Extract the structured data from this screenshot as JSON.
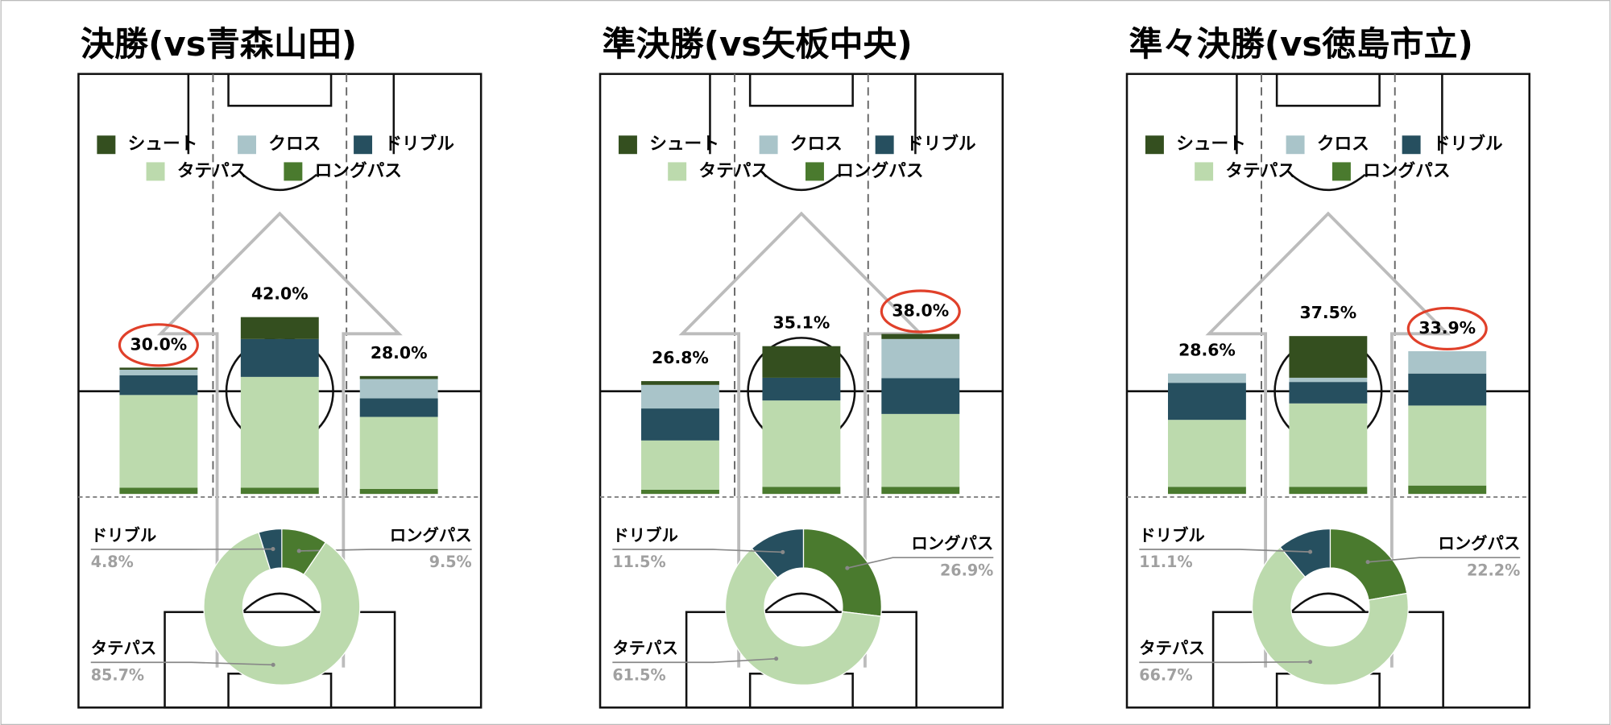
{
  "chart_data": [
    {
      "type": "bar",
      "stacked": true,
      "title": "決勝(vs青森山田)",
      "categories": [
        null,
        null,
        null
      ],
      "ylim": [
        0,
        100
      ],
      "series": [
        {
          "name": "シュート",
          "color": "#344f1f",
          "values": [
            0.5,
            5.2,
            0.7
          ]
        },
        {
          "name": "クロス",
          "color": "#a9c4c9",
          "values": [
            1.3,
            0,
            4.6
          ]
        },
        {
          "name": "ドリブル",
          "color": "#264f5f",
          "values": [
            4.7,
            9.0,
            4.4
          ]
        },
        {
          "name": "タテパス",
          "color": "#bcdaad",
          "values": [
            22,
            26.3,
            17.1
          ]
        },
        {
          "name": "ロングパス",
          "color": "#4a7a2e",
          "values": [
            1.5,
            1.5,
            1.2
          ]
        }
      ],
      "totals": [
        30.0,
        42.0,
        28.0
      ],
      "total_labels": [
        "30.0%",
        "42.0%",
        "28.0%"
      ],
      "highlight": [
        0
      ]
    },
    {
      "type": "bar",
      "stacked": true,
      "title": "準決勝(vs矢板中央)",
      "categories": [
        null,
        null,
        null
      ],
      "ylim": [
        0,
        100
      ],
      "series": [
        {
          "name": "シュート",
          "color": "#344f1f",
          "values": [
            0.9,
            7.5,
            1.2
          ]
        },
        {
          "name": "クロス",
          "color": "#a9c4c9",
          "values": [
            5.6,
            0,
            9.3
          ]
        },
        {
          "name": "ドリブル",
          "color": "#264f5f",
          "values": [
            7.6,
            5.4,
            8.5
          ]
        },
        {
          "name": "タテパス",
          "color": "#bcdaad",
          "values": [
            11.7,
            20.5,
            17.3
          ]
        },
        {
          "name": "ロングパス",
          "color": "#4a7a2e",
          "values": [
            1.0,
            1.7,
            1.7
          ]
        }
      ],
      "totals": [
        26.8,
        35.1,
        38.0
      ],
      "total_labels": [
        "26.8%",
        "35.1%",
        "38.0%"
      ],
      "highlight": [
        2
      ]
    },
    {
      "type": "bar",
      "stacked": true,
      "title": "準々決勝(vs徳島市立)",
      "categories": [
        null,
        null,
        null
      ],
      "ylim": [
        0,
        100
      ],
      "series": [
        {
          "name": "シュート",
          "color": "#344f1f",
          "values": [
            0,
            9.9,
            0
          ]
        },
        {
          "name": "クロス",
          "color": "#a9c4c9",
          "values": [
            2.2,
            1.0,
            5.3
          ]
        },
        {
          "name": "ドリブル",
          "color": "#264f5f",
          "values": [
            8.8,
            5.1,
            7.6
          ]
        },
        {
          "name": "タテパス",
          "color": "#bcdaad",
          "values": [
            15.9,
            19.8,
            19.0
          ]
        },
        {
          "name": "ロングパス",
          "color": "#4a7a2e",
          "values": [
            1.7,
            1.7,
            2.0
          ]
        }
      ],
      "totals": [
        28.6,
        37.5,
        33.9
      ],
      "total_labels": [
        "28.6%",
        "37.5%",
        "33.9%"
      ],
      "highlight": [
        2
      ]
    },
    {
      "type": "donut",
      "categories": [
        "ロングパス",
        "タテパス",
        "ドリブル"
      ],
      "colors": [
        "#4a7a2e",
        "#bcdaad",
        "#264f5f"
      ],
      "values": [
        9.5,
        85.7,
        4.8
      ],
      "value_labels": [
        "9.5%",
        "85.7%",
        "4.8%"
      ]
    },
    {
      "type": "donut",
      "categories": [
        "ロングパス",
        "タテパス",
        "ドリブル"
      ],
      "colors": [
        "#4a7a2e",
        "#bcdaad",
        "#264f5f"
      ],
      "values": [
        26.9,
        61.5,
        11.5
      ],
      "value_labels": [
        "26.9%",
        "61.5%",
        "11.5%"
      ]
    },
    {
      "type": "donut",
      "categories": [
        "ロングパス",
        "タテパス",
        "ドリブル"
      ],
      "colors": [
        "#4a7a2e",
        "#bcdaad",
        "#264f5f"
      ],
      "values": [
        22.2,
        66.7,
        11.1
      ],
      "value_labels": [
        "22.2%",
        "66.7%",
        "11.1%"
      ]
    }
  ]
}
